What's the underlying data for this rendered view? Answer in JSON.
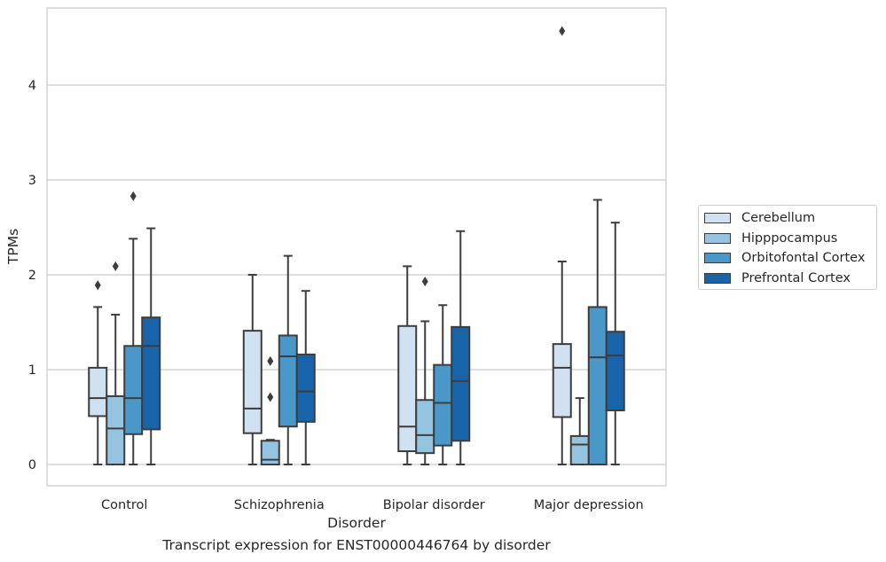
{
  "chart_data": {
    "type": "box",
    "title": "",
    "caption": "Transcript expression for ENST00000446764 by disorder",
    "xlabel": "Disorder",
    "ylabel": "TPMs",
    "ylim": [
      -0.22,
      4.8
    ],
    "yticks": [
      "0",
      "1",
      "2",
      "3",
      "4"
    ],
    "grid": "horizontal",
    "legend_position": "right",
    "categories": [
      "Control",
      "Schizophrenia",
      "Bipolar disorder",
      "Major depression"
    ],
    "series": [
      {
        "name": "Cerebellum",
        "color": "#d0e1f2",
        "boxes": [
          {
            "whisker_low": 0.0,
            "q1": 0.51,
            "median": 0.7,
            "q3": 1.02,
            "whisker_high": 1.66,
            "outliers": [
              1.89
            ]
          },
          {
            "whisker_low": 0.0,
            "q1": 0.33,
            "median": 0.59,
            "q3": 1.41,
            "whisker_high": 2.0,
            "outliers": []
          },
          {
            "whisker_low": 0.0,
            "q1": 0.14,
            "median": 0.4,
            "q3": 1.46,
            "whisker_high": 2.09,
            "outliers": []
          },
          {
            "whisker_low": 0.0,
            "q1": 0.5,
            "median": 1.02,
            "q3": 1.27,
            "whisker_high": 2.14,
            "outliers": [
              4.57
            ]
          }
        ]
      },
      {
        "name": "Hipppocampus",
        "color": "#94c4df",
        "boxes": [
          {
            "whisker_low": 0.0,
            "q1": 0.0,
            "median": 0.38,
            "q3": 0.72,
            "whisker_high": 1.58,
            "outliers": [
              2.09
            ]
          },
          {
            "whisker_low": 0.0,
            "q1": 0.0,
            "median": 0.05,
            "q3": 0.25,
            "whisker_high": 0.26,
            "outliers": [
              0.71,
              1.09
            ]
          },
          {
            "whisker_low": 0.0,
            "q1": 0.12,
            "median": 0.31,
            "q3": 0.68,
            "whisker_high": 1.51,
            "outliers": [
              1.93
            ]
          },
          {
            "whisker_low": 0.0,
            "q1": 0.0,
            "median": 0.21,
            "q3": 0.3,
            "whisker_high": 0.7,
            "outliers": []
          }
        ]
      },
      {
        "name": "Orbitofontal Cortex",
        "color": "#4a98c9",
        "boxes": [
          {
            "whisker_low": 0.0,
            "q1": 0.32,
            "median": 0.7,
            "q3": 1.25,
            "whisker_high": 2.38,
            "outliers": [
              2.83
            ]
          },
          {
            "whisker_low": 0.0,
            "q1": 0.4,
            "median": 1.14,
            "q3": 1.36,
            "whisker_high": 2.2,
            "outliers": []
          },
          {
            "whisker_low": 0.0,
            "q1": 0.2,
            "median": 0.65,
            "q3": 1.05,
            "whisker_high": 1.68,
            "outliers": []
          },
          {
            "whisker_low": 0.0,
            "q1": 0.0,
            "median": 1.13,
            "q3": 1.66,
            "whisker_high": 2.79,
            "outliers": []
          }
        ]
      },
      {
        "name": "Prefrontal Cortex",
        "color": "#1764ab",
        "boxes": [
          {
            "whisker_low": 0.0,
            "q1": 0.37,
            "median": 1.25,
            "q3": 1.55,
            "whisker_high": 2.49,
            "outliers": []
          },
          {
            "whisker_low": 0.0,
            "q1": 0.45,
            "median": 0.77,
            "q3": 1.16,
            "whisker_high": 1.83,
            "outliers": []
          },
          {
            "whisker_low": 0.0,
            "q1": 0.25,
            "median": 0.88,
            "q3": 1.45,
            "whisker_high": 2.46,
            "outliers": []
          },
          {
            "whisker_low": 0.0,
            "q1": 0.57,
            "median": 1.15,
            "q3": 1.4,
            "whisker_high": 2.55,
            "outliers": []
          }
        ]
      }
    ]
  }
}
